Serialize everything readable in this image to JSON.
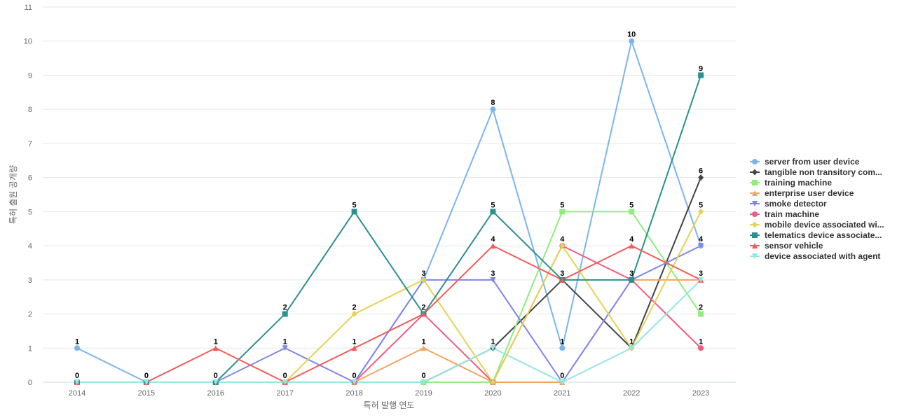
{
  "chart_data": {
    "type": "line",
    "xlabel": "특허 발행 연도",
    "ylabel": "특허 출원 공개량",
    "ylim": [
      0,
      11
    ],
    "y_ticks": [
      0,
      1,
      2,
      3,
      4,
      5,
      6,
      7,
      8,
      9,
      10,
      11
    ],
    "categories": [
      "2014",
      "2015",
      "2016",
      "2017",
      "2018",
      "2019",
      "2020",
      "2021",
      "2022",
      "2023"
    ],
    "legend_position": "right",
    "grid": true,
    "series": [
      {
        "name": "server from user device",
        "color": "#7cb5ec",
        "marker": "circle",
        "values": [
          1,
          0,
          0,
          0,
          0,
          3,
          8,
          1,
          10,
          4
        ],
        "labeled": [
          true,
          true,
          true,
          true,
          true,
          true,
          true,
          true,
          true,
          true
        ]
      },
      {
        "name": "tangible non transitory com...",
        "color": "#434348",
        "marker": "diamond",
        "values": [
          0,
          0,
          0,
          0,
          0,
          0,
          1,
          3,
          1,
          6
        ],
        "labeled": [
          false,
          false,
          false,
          false,
          false,
          false,
          true,
          true,
          true,
          true
        ]
      },
      {
        "name": "training machine",
        "color": "#90ed7d",
        "marker": "square",
        "values": [
          0,
          0,
          0,
          0,
          0,
          0,
          0,
          5,
          5,
          2
        ],
        "labeled": [
          false,
          false,
          false,
          false,
          false,
          false,
          false,
          true,
          true,
          true
        ]
      },
      {
        "name": "enterprise user device",
        "color": "#f7a35c",
        "marker": "triangle",
        "values": [
          0,
          0,
          0,
          0,
          0,
          1,
          0,
          0,
          3,
          3
        ],
        "labeled": [
          false,
          false,
          false,
          false,
          false,
          true,
          false,
          false,
          false,
          false
        ]
      },
      {
        "name": "smoke detector",
        "color": "#8085e9",
        "marker": "triangle-down",
        "values": [
          0,
          0,
          0,
          1,
          0,
          3,
          3,
          0,
          3,
          4
        ],
        "labeled": [
          false,
          false,
          false,
          true,
          false,
          false,
          true,
          true,
          false,
          false
        ]
      },
      {
        "name": "train machine",
        "color": "#f15c80",
        "marker": "circle",
        "values": [
          0,
          0,
          0,
          0,
          0,
          2,
          0,
          4,
          3,
          1
        ],
        "labeled": [
          false,
          false,
          false,
          false,
          false,
          false,
          false,
          true,
          false,
          true
        ]
      },
      {
        "name": "mobile device associated wi...",
        "color": "#e4d354",
        "marker": "diamond",
        "values": [
          0,
          0,
          0,
          0,
          2,
          3,
          0,
          4,
          1,
          5
        ],
        "labeled": [
          false,
          false,
          false,
          false,
          true,
          false,
          false,
          false,
          false,
          true
        ]
      },
      {
        "name": "telematics device associate...",
        "color": "#2b908f",
        "marker": "square",
        "values": [
          0,
          0,
          0,
          2,
          5,
          2,
          5,
          3,
          3,
          9
        ],
        "labeled": [
          false,
          false,
          false,
          true,
          true,
          true,
          true,
          false,
          true,
          true
        ]
      },
      {
        "name": "sensor vehicle",
        "color": "#f45b5b",
        "marker": "triangle",
        "values": [
          0,
          0,
          1,
          0,
          1,
          2,
          4,
          3,
          4,
          3
        ],
        "labeled": [
          false,
          false,
          true,
          false,
          true,
          false,
          true,
          false,
          true,
          true
        ]
      },
      {
        "name": "device associated with agent",
        "color": "#91e8e1",
        "marker": "triangle-down",
        "values": [
          0,
          0,
          0,
          0,
          0,
          0,
          1,
          0,
          1,
          3
        ],
        "labeled": [
          true,
          false,
          false,
          false,
          false,
          true,
          false,
          false,
          false,
          false
        ]
      }
    ]
  }
}
